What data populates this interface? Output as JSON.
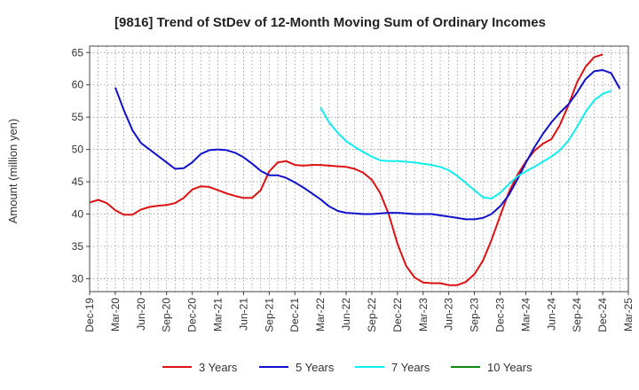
{
  "chart_data": {
    "type": "line",
    "title": "[9816]  Trend of StDev of 12-Month Moving Sum of Ordinary Incomes",
    "xlabel": "",
    "ylabel": "Amount (million yen)",
    "ylim": [
      28,
      66
    ],
    "yticks": [
      30,
      35,
      40,
      45,
      50,
      55,
      60,
      65
    ],
    "x_start": "2019-12",
    "x_end": "2025-03",
    "xtick_labels": [
      "Dec-19",
      "Mar-20",
      "Jun-20",
      "Sep-20",
      "Dec-20",
      "Mar-21",
      "Jun-21",
      "Sep-21",
      "Dec-21",
      "Mar-22",
      "Jun-22",
      "Sep-22",
      "Dec-22",
      "Mar-23",
      "Jun-23",
      "Sep-23",
      "Dec-23",
      "Mar-24",
      "Jun-24",
      "Sep-24",
      "Dec-24",
      "Mar-25"
    ],
    "grid": true,
    "legend_position": "bottom",
    "series": [
      {
        "name": "3 Years",
        "color": "#dd1111",
        "start_index": 0,
        "values": [
          41.8,
          42.2,
          41.7,
          40.6,
          39.9,
          39.9,
          40.7,
          41.1,
          41.3,
          41.4,
          41.7,
          42.5,
          43.8,
          44.3,
          44.2,
          43.7,
          43.2,
          42.8,
          42.5,
          42.5,
          43.7,
          46.6,
          48.0,
          48.2,
          47.6,
          47.5,
          47.6,
          47.6,
          47.5,
          47.4,
          47.3,
          47.0,
          46.4,
          45.3,
          43.2,
          39.9,
          35.4,
          32.0,
          30.2,
          29.4,
          29.3,
          29.3,
          29.0,
          29.0,
          29.5,
          30.7,
          32.8,
          36.0,
          39.7,
          43.3,
          46.0,
          48.1,
          49.8,
          50.9,
          51.6,
          53.8,
          56.9,
          60.4,
          62.8,
          64.3,
          64.7
        ]
      },
      {
        "name": "5 Years",
        "color": "#1111cc",
        "start_index": 3,
        "values": [
          59.6,
          56.1,
          53.0,
          51.0,
          50.0,
          49.0,
          48.0,
          47.0,
          47.1,
          48.0,
          49.3,
          49.9,
          50.0,
          49.9,
          49.5,
          48.8,
          47.8,
          46.7,
          46.0,
          46.0,
          45.6,
          44.9,
          44.1,
          43.2,
          42.3,
          41.2,
          40.5,
          40.2,
          40.1,
          40.0,
          40.0,
          40.1,
          40.2,
          40.2,
          40.1,
          40.0,
          40.0,
          40.0,
          39.8,
          39.6,
          39.4,
          39.2,
          39.2,
          39.4,
          40.0,
          41.2,
          42.9,
          45.3,
          47.9,
          50.3,
          52.4,
          54.2,
          55.7,
          57.0,
          58.8,
          60.9,
          62.1,
          62.3,
          61.8,
          59.4
        ]
      },
      {
        "name": "7 Years",
        "color": "#11eeee",
        "start_index": 27,
        "values": [
          56.5,
          54.2,
          52.6,
          51.3,
          50.4,
          49.6,
          48.9,
          48.3,
          48.2,
          48.2,
          48.1,
          48.0,
          47.8,
          47.6,
          47.3,
          46.8,
          45.9,
          44.8,
          43.7,
          42.6,
          42.4,
          43.3,
          44.6,
          45.8,
          46.6,
          47.3,
          48.1,
          48.9,
          49.9,
          51.4,
          53.5,
          55.8,
          57.6,
          58.6,
          59.1
        ]
      },
      {
        "name": "10 Years",
        "color": "#118811",
        "start_index": 0,
        "values": []
      }
    ]
  }
}
